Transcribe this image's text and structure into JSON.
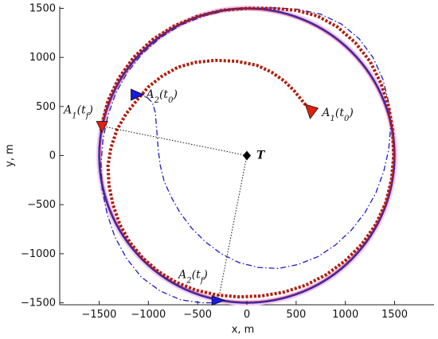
{
  "chart_data": {
    "type": "line",
    "title": "",
    "xlabel": "x, m",
    "ylabel": "y, m",
    "xlim": [
      -1900,
      1900
    ],
    "ylim": [
      -1520,
      1520
    ],
    "xticks": [
      -1500,
      -1000,
      -500,
      0,
      500,
      1000,
      1500
    ],
    "yticks": [
      -1500,
      -1000,
      -500,
      0,
      500,
      1000,
      1500
    ],
    "tick_labels": {
      "x": [
        "−1500",
        "−1000",
        "−500",
        "0",
        "500",
        "1000",
        "1500"
      ],
      "y": [
        "−1500",
        "−1000",
        "−500",
        "0",
        "500",
        "1000",
        "1500"
      ]
    },
    "grid": false,
    "target": {
      "x": 0,
      "y": 0,
      "label": "T"
    },
    "series": [
      {
        "style": "outer-circle-band",
        "color": "#f4c9ec",
        "points": [
          [
            1500,
            0
          ],
          [
            1498,
            -78
          ],
          [
            1493,
            -157
          ],
          [
            1483,
            -234
          ],
          [
            1470,
            -312
          ],
          [
            1452,
            -390
          ],
          [
            1432,
            -465
          ],
          [
            1408,
            -540
          ],
          [
            1380,
            -612
          ],
          [
            1347,
            -683
          ],
          [
            1310,
            -750
          ],
          [
            1270,
            -815
          ],
          [
            1225,
            -877
          ],
          [
            1177,
            -936
          ],
          [
            1125,
            -992
          ],
          [
            1068,
            -1045
          ],
          [
            1010,
            -1094
          ],
          [
            947,
            -1139
          ],
          [
            882,
            -1180
          ],
          [
            814,
            -1217
          ],
          [
            745,
            -1250
          ],
          [
            672,
            -1278
          ],
          [
            598,
            -1302
          ],
          [
            522,
            -1322
          ],
          [
            445,
            -1336
          ],
          [
            368,
            -1346
          ],
          [
            290,
            -1351
          ],
          [
            212,
            -1351
          ],
          [
            134,
            -1346
          ],
          [
            57,
            -1336
          ],
          [
            -20,
            -1322
          ],
          [
            -95,
            -1302
          ],
          [
            -170,
            -1278
          ],
          [
            -242,
            -1250
          ],
          [
            -313,
            -1217
          ],
          [
            -381,
            -1180
          ],
          [
            -447,
            -1139
          ],
          [
            -510,
            -1094
          ],
          [
            -570,
            -1045
          ],
          [
            -627,
            -992
          ],
          [
            -680,
            -936
          ],
          [
            -729,
            -877
          ],
          [
            -774,
            -815
          ],
          [
            -815,
            -750
          ],
          [
            -852,
            -683
          ],
          [
            -884,
            -612
          ],
          [
            -912,
            -540
          ],
          [
            -935,
            -465
          ],
          [
            -954,
            -390
          ],
          [
            -967,
            -312
          ],
          [
            -977,
            -234
          ],
          [
            -981,
            -157
          ],
          [
            -980,
            -78
          ],
          [
            -975,
            0
          ],
          [
            -965,
            78
          ],
          [
            -950,
            157
          ],
          [
            -930,
            234
          ],
          [
            -905,
            312
          ],
          [
            -875,
            390
          ],
          [
            -840,
            465
          ],
          [
            -800,
            540
          ],
          [
            -755,
            612
          ],
          [
            -706,
            683
          ],
          [
            -652,
            750
          ],
          [
            -594,
            815
          ],
          [
            -531,
            877
          ],
          [
            -465,
            936
          ],
          [
            -394,
            992
          ],
          [
            -320,
            1045
          ],
          [
            -243,
            1094
          ],
          [
            -162,
            1139
          ],
          [
            -79,
            1180
          ],
          [
            7,
            1217
          ],
          [
            95,
            1250
          ],
          [
            185,
            1278
          ],
          [
            277,
            1302
          ],
          [
            370,
            1322
          ],
          [
            465,
            1336
          ],
          [
            560,
            1346
          ],
          [
            656,
            1351
          ],
          [
            752,
            1351
          ],
          [
            848,
            1346
          ],
          [
            943,
            1336
          ],
          [
            1037,
            1322
          ],
          [
            1130,
            1302
          ],
          [
            1221,
            1278
          ],
          [
            1310,
            1250
          ]
        ],
        "points_note_ignore": true
      }
    ],
    "paths": {
      "outer_circle": {
        "name": "",
        "color": "#3a2aa0",
        "center": [
          0,
          0
        ],
        "radius": 1500
      },
      "A1_trajectory": {
        "color": "#b01c0c",
        "style": "dotted-thick",
        "points": [
          [
            650,
            450
          ],
          [
            560,
            560
          ],
          [
            480,
            660
          ],
          [
            380,
            760
          ],
          [
            250,
            850
          ],
          [
            100,
            920
          ],
          [
            -100,
            960
          ],
          [
            -320,
            970
          ],
          [
            -520,
            950
          ],
          [
            -700,
            900
          ],
          [
            -860,
            810
          ],
          [
            -1000,
            700
          ],
          [
            -1120,
            560
          ],
          [
            -1230,
            420
          ],
          [
            -1320,
            260
          ],
          [
            -1380,
            80
          ],
          [
            -1410,
            -100
          ],
          [
            -1400,
            -300
          ],
          [
            -1360,
            -500
          ],
          [
            -1290,
            -700
          ],
          [
            -1190,
            -880
          ],
          [
            -1060,
            -1040
          ],
          [
            -900,
            -1180
          ],
          [
            -720,
            -1290
          ],
          [
            -520,
            -1370
          ],
          [
            -300,
            -1420
          ],
          [
            -80,
            -1440
          ],
          [
            150,
            -1430
          ],
          [
            380,
            -1390
          ],
          [
            600,
            -1320
          ],
          [
            810,
            -1210
          ],
          [
            1000,
            -1070
          ],
          [
            1170,
            -900
          ],
          [
            1310,
            -700
          ],
          [
            1410,
            -480
          ],
          [
            1470,
            -240
          ],
          [
            1490,
            0
          ],
          [
            1480,
            250
          ],
          [
            1440,
            500
          ],
          [
            1360,
            740
          ],
          [
            1250,
            960
          ],
          [
            1100,
            1150
          ],
          [
            920,
            1310
          ],
          [
            720,
            1420
          ],
          [
            500,
            1480
          ],
          [
            260,
            1500
          ],
          [
            0,
            1500
          ],
          [
            -250,
            1480
          ],
          [
            -500,
            1420
          ],
          [
            -740,
            1320
          ],
          [
            -960,
            1180
          ],
          [
            -1150,
            1000
          ],
          [
            -1300,
            790
          ],
          [
            -1410,
            560
          ],
          [
            -1470,
            320
          ],
          [
            -1480,
            250
          ]
        ]
      },
      "A2_trajectory": {
        "color": "#1a1acc",
        "style": "dashdot",
        "points": [
          [
            -1120,
            620
          ],
          [
            -1020,
            600
          ],
          [
            -960,
            540
          ],
          [
            -930,
            440
          ],
          [
            -920,
            320
          ],
          [
            -910,
            200
          ],
          [
            -900,
            60
          ],
          [
            -880,
            -100
          ],
          [
            -840,
            -260
          ],
          [
            -770,
            -420
          ],
          [
            -680,
            -580
          ],
          [
            -560,
            -740
          ],
          [
            -420,
            -880
          ],
          [
            -260,
            -1000
          ],
          [
            -80,
            -1090
          ],
          [
            120,
            -1140
          ],
          [
            320,
            -1150
          ],
          [
            520,
            -1110
          ],
          [
            720,
            -1030
          ],
          [
            900,
            -910
          ],
          [
            1060,
            -760
          ],
          [
            1200,
            -580
          ],
          [
            1310,
            -380
          ],
          [
            1390,
            -160
          ],
          [
            1440,
            60
          ],
          [
            1460,
            300
          ],
          [
            1440,
            540
          ],
          [
            1380,
            780
          ],
          [
            1280,
            1000
          ],
          [
            1140,
            1190
          ],
          [
            960,
            1340
          ],
          [
            750,
            1440
          ],
          [
            520,
            1490
          ],
          [
            280,
            1505
          ],
          [
            40,
            1500
          ],
          [
            -200,
            1480
          ],
          [
            -440,
            1420
          ],
          [
            -670,
            1330
          ],
          [
            -880,
            1200
          ],
          [
            -1060,
            1040
          ],
          [
            -1210,
            850
          ],
          [
            -1330,
            640
          ],
          [
            -1410,
            410
          ],
          [
            -1460,
            170
          ],
          [
            -1480,
            -80
          ],
          [
            -1470,
            -340
          ],
          [
            -1420,
            -590
          ],
          [
            -1340,
            -830
          ],
          [
            -1220,
            -1050
          ],
          [
            -1070,
            -1240
          ],
          [
            -880,
            -1380
          ],
          [
            -670,
            -1470
          ],
          [
            -460,
            -1500
          ],
          [
            -300,
            -1500
          ]
        ]
      }
    },
    "markers": [
      {
        "name": "A1_t0",
        "x": 650,
        "y": 450,
        "color": "#e0200c",
        "label_main": "A",
        "label_sub1": "1",
        "label_arg": "(t",
        "label_sub2": "0",
        "label_end": ")"
      },
      {
        "name": "A2_t0",
        "x": -1120,
        "y": 620,
        "color": "#1a1ae0",
        "label_main": "A",
        "label_sub1": "2",
        "label_arg": "(t",
        "label_sub2": "0",
        "label_end": ")"
      },
      {
        "name": "A1_tf",
        "x": -1470,
        "y": 300,
        "color": "#e0200c",
        "label_main": "A",
        "label_sub1": "1",
        "label_arg": "(t",
        "label_sub2": "f",
        "label_end": ")"
      },
      {
        "name": "A2_tf",
        "x": -290,
        "y": -1475,
        "color": "#1a1ae0",
        "label_main": "A",
        "label_sub1": "2",
        "label_arg": "(t",
        "label_sub2": "f",
        "label_end": ")"
      }
    ]
  }
}
